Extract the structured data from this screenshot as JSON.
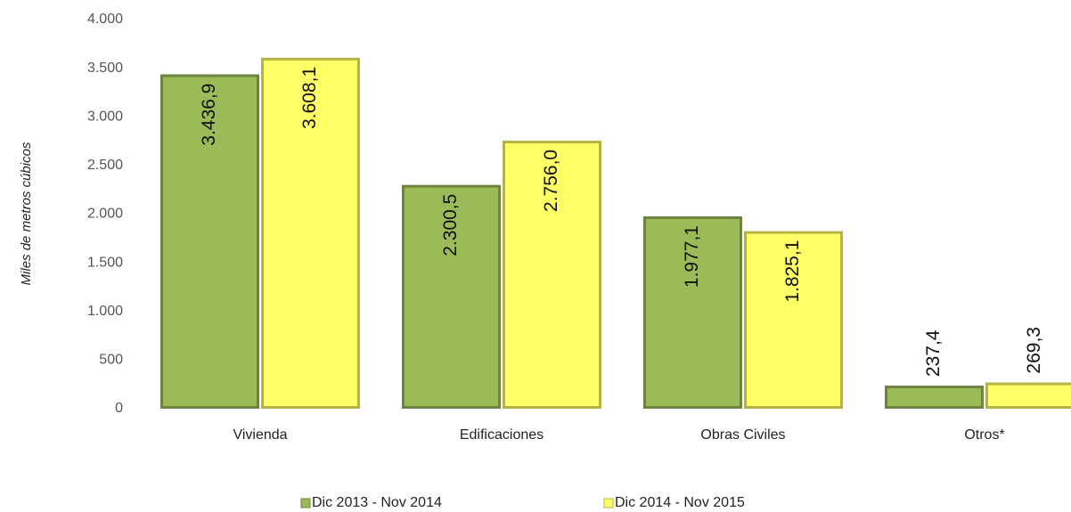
{
  "chart_data": {
    "type": "bar",
    "y_label": "Miles de metros cúbicos",
    "categories": [
      "Vivienda",
      "Edificaciones",
      "Obras Civiles",
      "Otros*"
    ],
    "series": [
      {
        "name": "Dic 2013 - Nov 2014",
        "color": "#9bbb59",
        "values": [
          3436.9,
          2300.5,
          1977.1,
          237.4
        ],
        "value_labels": [
          "3.436,9",
          "2.300,5",
          "1.977,1",
          "237,4"
        ]
      },
      {
        "name": "Dic 2014 - Nov 2015",
        "color": "#ffff66",
        "values": [
          3608.1,
          2756.0,
          1825.1,
          269.3
        ],
        "value_labels": [
          "3.608,1",
          "2.756,0",
          "1.825,1",
          "269,3"
        ]
      }
    ],
    "ylim": [
      0,
      4000
    ],
    "yticks": [
      0,
      500,
      {
        "value": 1000,
        "label": "1.000"
      },
      {
        "value": 1500,
        "label": "1.500"
      },
      {
        "value": 2000,
        "label": "2.000"
      },
      {
        "value": 2500,
        "label": "2.500"
      },
      {
        "value": 3000,
        "label": "3.000"
      },
      {
        "value": 3500,
        "label": "3.500"
      },
      {
        "value": 4000,
        "label": "4.000"
      }
    ],
    "grid": false
  }
}
